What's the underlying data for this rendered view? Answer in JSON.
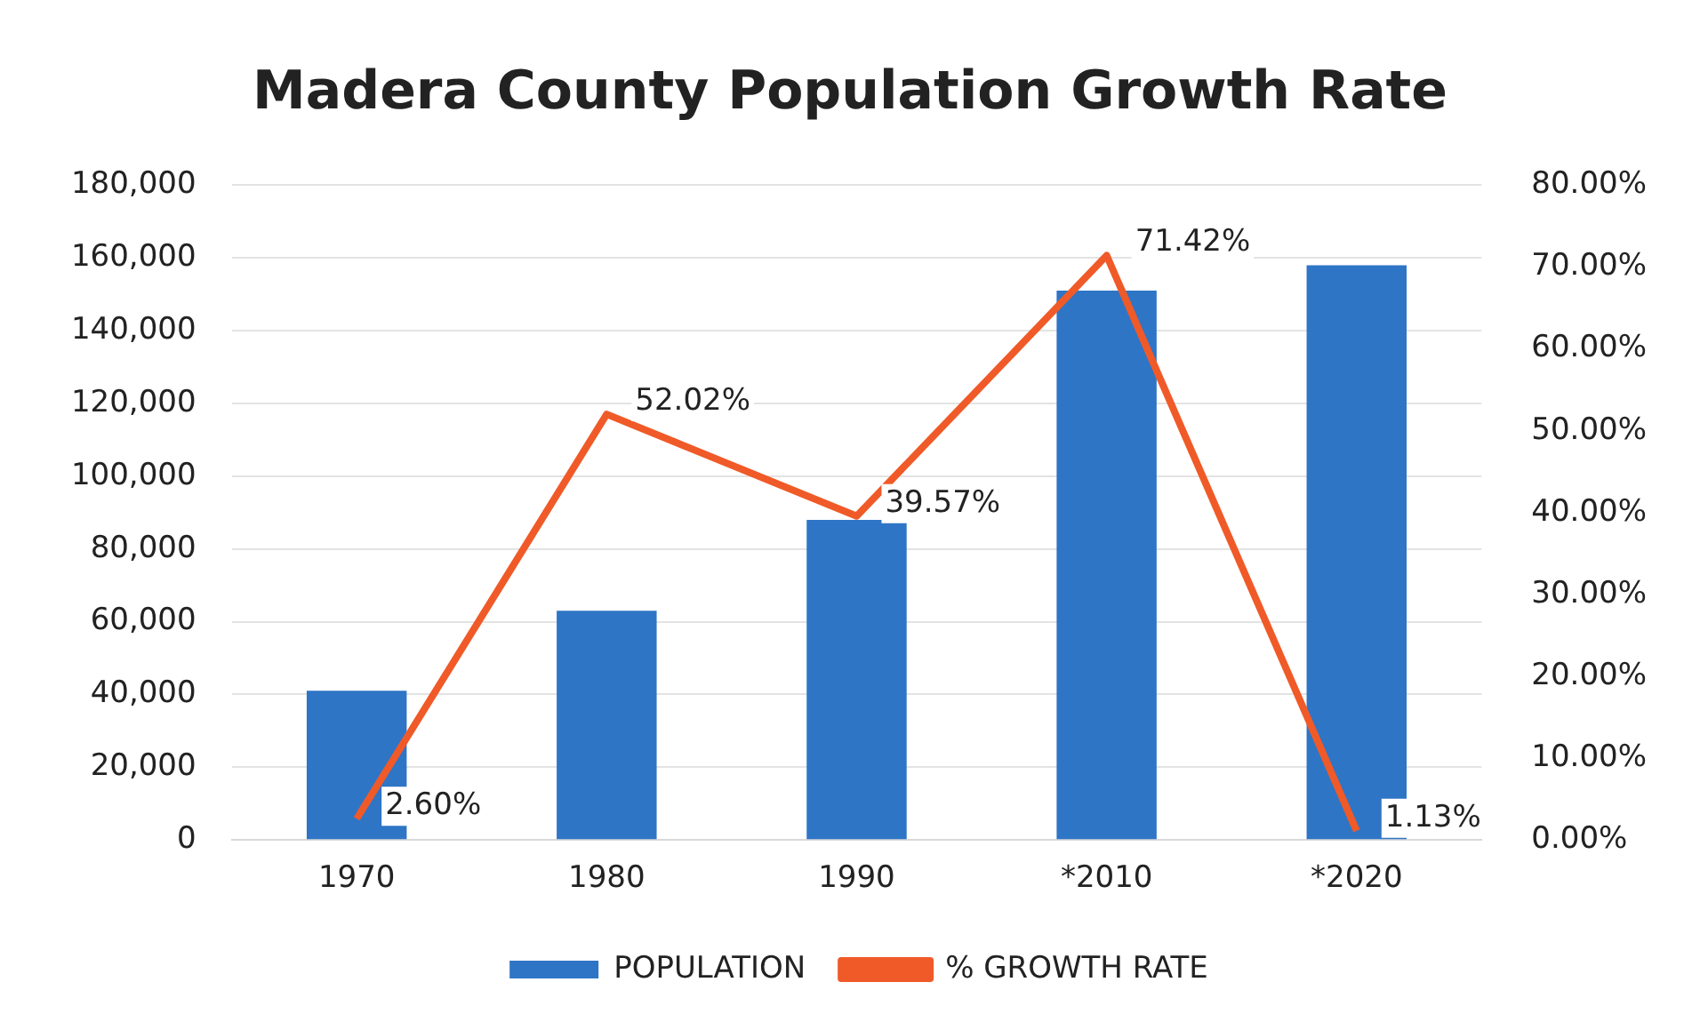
{
  "chart_data": {
    "type": "bar",
    "title": "Madera County Population Growth Rate",
    "categories": [
      "1970",
      "1980",
      "1990",
      "*2010",
      "*2020"
    ],
    "series": [
      {
        "name": "POPULATION",
        "color": "#2e75c6",
        "values": [
          41000,
          63000,
          88000,
          151000,
          158000
        ]
      },
      {
        "name": "% GROWTH RATE",
        "type": "line",
        "axis": "y2",
        "color": "#f05a28",
        "values": [
          2.6,
          52.02,
          39.57,
          71.42,
          1.13
        ],
        "value_labels": [
          "2.60%",
          "52.02%",
          "39.57%",
          "71.42%",
          "1.13%"
        ]
      }
    ],
    "ylim": [
      0,
      180000
    ],
    "yticks": [
      {
        "value": 0,
        "label": "0"
      },
      {
        "value": 20000,
        "label": "20,000"
      },
      {
        "value": 40000,
        "label": "40,000"
      },
      {
        "value": 60000,
        "label": "60,000"
      },
      {
        "value": 80000,
        "label": "80,000"
      },
      {
        "value": 100000,
        "label": "100,000"
      },
      {
        "value": 120000,
        "label": "120,000"
      },
      {
        "value": 140000,
        "label": "140,000"
      },
      {
        "value": 160000,
        "label": "160,000"
      },
      {
        "value": 180000,
        "label": "180,000"
      }
    ],
    "y2lim": [
      0,
      80
    ],
    "y2ticks": [
      {
        "value": 0,
        "label": "0.00%"
      },
      {
        "value": 10,
        "label": "10.00%"
      },
      {
        "value": 20,
        "label": "20.00%"
      },
      {
        "value": 30,
        "label": "30.00%"
      },
      {
        "value": 40,
        "label": "40.00%"
      },
      {
        "value": 50,
        "label": "50.00%"
      },
      {
        "value": 60,
        "label": "60.00%"
      },
      {
        "value": 70,
        "label": "70.00%"
      },
      {
        "value": 80,
        "label": "80.00%"
      }
    ],
    "grid": "y",
    "legend": "bottom",
    "marker": "none",
    "line_style": "solid"
  }
}
